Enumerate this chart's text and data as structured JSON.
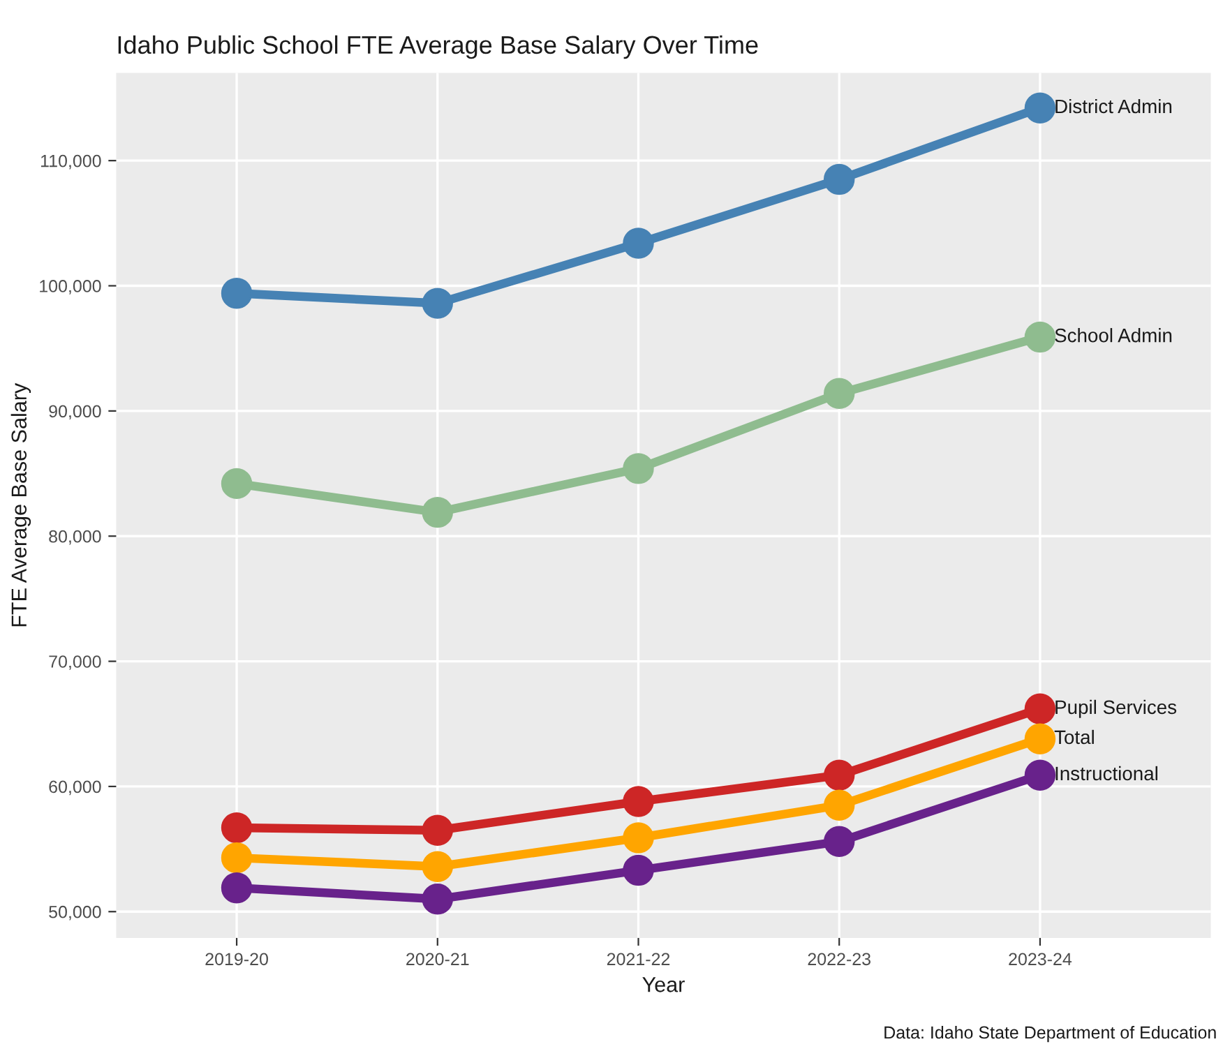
{
  "chart_data": {
    "type": "line",
    "title": "Idaho Public School FTE Average Base Salary Over Time",
    "xlabel": "Year",
    "ylabel": "FTE Average Base Salary",
    "categories": [
      "2019-20",
      "2020-21",
      "2021-22",
      "2022-23",
      "2023-24"
    ],
    "series": [
      {
        "name": "District Admin",
        "color": "#4682b4",
        "values": [
          99400,
          98600,
          103400,
          108500,
          114200
        ]
      },
      {
        "name": "School Admin",
        "color": "#8fbc8f",
        "values": [
          84200,
          81900,
          85400,
          91400,
          95900
        ]
      },
      {
        "name": "Pupil Services",
        "color": "#cd2626",
        "values": [
          56700,
          56500,
          58800,
          60900,
          66200
        ]
      },
      {
        "name": "Total",
        "color": "#ffa500",
        "values": [
          54300,
          53600,
          55900,
          58500,
          63800
        ]
      },
      {
        "name": "Instructional",
        "color": "#68228b",
        "values": [
          51900,
          51000,
          53300,
          55600,
          60900
        ]
      }
    ],
    "ylim": [
      47900,
      117000
    ],
    "yticks": [
      {
        "value": 50000,
        "label": "50,000"
      },
      {
        "value": 60000,
        "label": "60,000"
      },
      {
        "value": 70000,
        "label": "70,000"
      },
      {
        "value": 80000,
        "label": "80,000"
      },
      {
        "value": 90000,
        "label": "90,000"
      },
      {
        "value": 100000,
        "label": "100,000"
      },
      {
        "value": 110000,
        "label": "110,000"
      }
    ],
    "grid": true,
    "legend": false,
    "marker": "circle",
    "line_style": "solid",
    "annotations": [
      "Data: Idaho State Department of Education"
    ]
  }
}
